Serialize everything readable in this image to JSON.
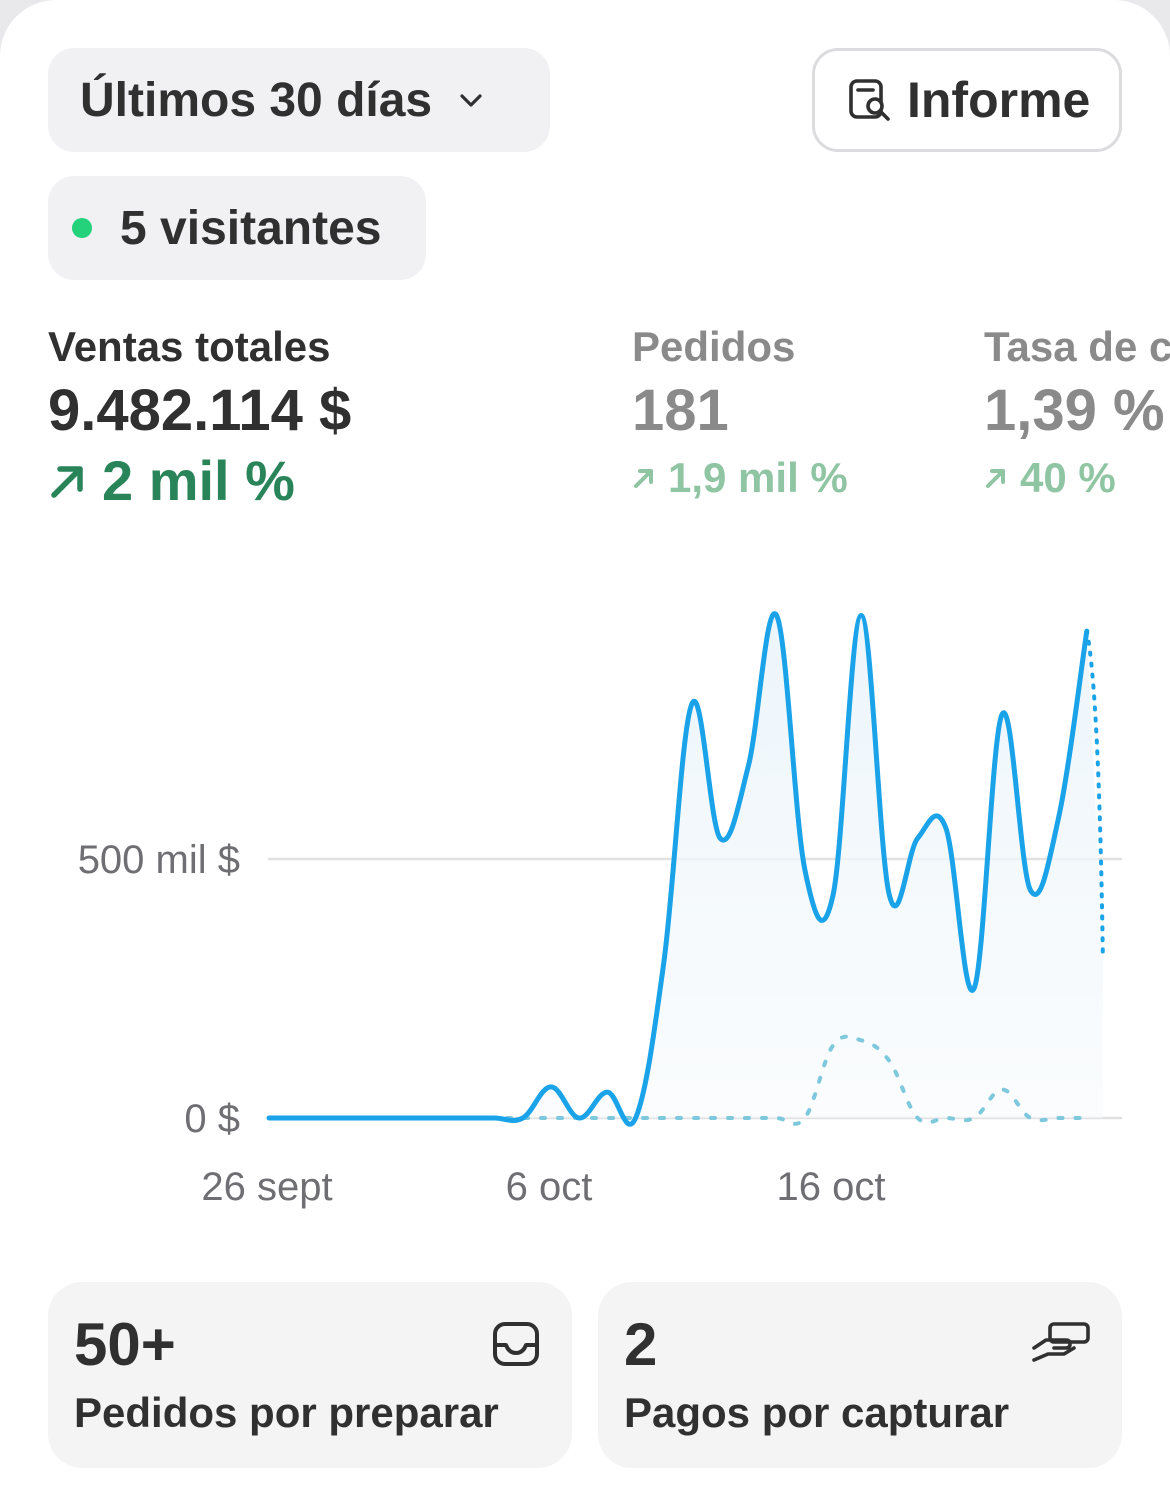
{
  "header": {
    "range_label": "Últimos 30 días",
    "report_label": "Informe",
    "visitors_label": "5 visitantes"
  },
  "metrics": [
    {
      "label": "Ventas totales",
      "value": "9.482.114 $",
      "delta": "2 mil %"
    },
    {
      "label": "Pedidos",
      "value": "181",
      "delta": "1,9 mil %"
    },
    {
      "label": "Tasa de c",
      "value": "1,39 %",
      "delta": "40 %"
    }
  ],
  "chart_data": {
    "type": "line",
    "x_ticks": [
      "26 sept",
      "6 oct",
      "16 oct"
    ],
    "y_ticks": [
      "0 $",
      "500 mil $"
    ],
    "ylim": [
      0,
      960000
    ],
    "x_start_date": "2023-09-26",
    "series": [
      {
        "name": "current",
        "style": "solid",
        "color": "#1aa3e8",
        "values": [
          0,
          0,
          0,
          0,
          0,
          0,
          0,
          0,
          0,
          0,
          60000,
          0,
          50000,
          0,
          300000,
          800000,
          540000,
          680000,
          970000,
          480000,
          430000,
          970000,
          430000,
          540000,
          560000,
          250000,
          780000,
          440000,
          580000,
          940000
        ]
      },
      {
        "name": "previous",
        "style": "dotted",
        "color": "#7ec8de",
        "values": [
          0,
          0,
          0,
          0,
          0,
          0,
          0,
          0,
          0,
          0,
          0,
          0,
          0,
          0,
          0,
          0,
          0,
          0,
          0,
          0,
          140000,
          150000,
          110000,
          0,
          0,
          0,
          55000,
          0,
          0,
          0
        ]
      }
    ]
  },
  "tiles": [
    {
      "number": "50+",
      "caption": "Pedidos por preparar",
      "icon": "inbox-icon"
    },
    {
      "number": "2",
      "caption": "Pagos por capturar",
      "icon": "hand-cash-icon"
    }
  ]
}
